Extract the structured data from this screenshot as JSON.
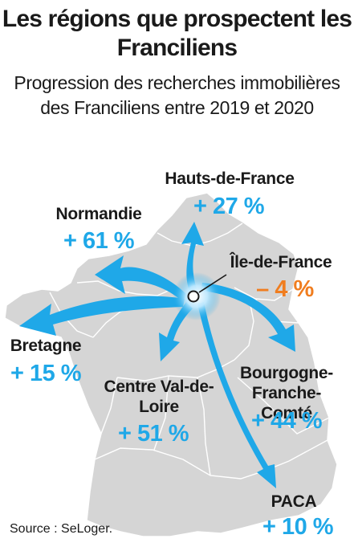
{
  "title": "Les régions que prospectent les Franciliens",
  "subtitle": "Progression des recherches immobilières des Franciliens entre 2019 et 2020",
  "source": "Source : SeLoger.",
  "colors": {
    "positive": "#1fa8e8",
    "negative": "#f07d1f",
    "map_fill": "#d5d5d5",
    "map_border": "#ffffff"
  },
  "origin": "Île-de-France",
  "regions": [
    {
      "name": "Hauts-de-France",
      "value": "+ 27 %",
      "change_pct": 27
    },
    {
      "name": "Normandie",
      "value": "+ 61 %",
      "change_pct": 61
    },
    {
      "name": "Île-de-France",
      "value": "– 4 %",
      "change_pct": -4
    },
    {
      "name": "Bretagne",
      "value": "+ 15 %",
      "change_pct": 15
    },
    {
      "name": "Centre Val-de-Loire",
      "value": "+ 51 %",
      "change_pct": 51
    },
    {
      "name": "Bourgogne-Franche-Comté",
      "value": "+ 44 %",
      "change_pct": 44
    },
    {
      "name": "PACA",
      "value": "+ 10 %",
      "change_pct": 10
    }
  ]
}
